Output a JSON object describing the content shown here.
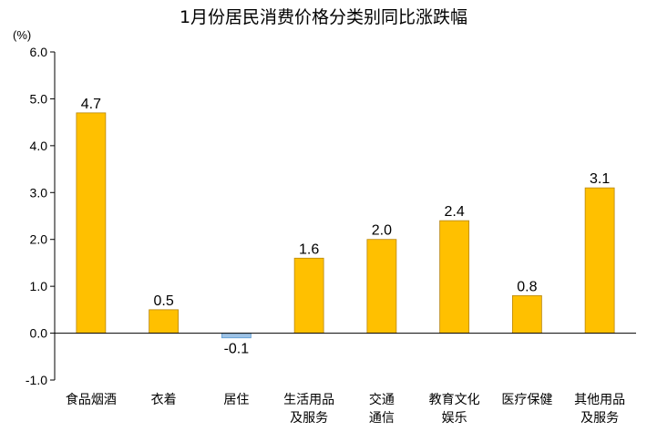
{
  "chart_data": {
    "type": "bar",
    "title": "1月份居民消费价格分类别同比涨跌幅",
    "unit_label": "(%)",
    "xlabel": "",
    "ylabel": "",
    "ylim": [
      -1.0,
      6.0
    ],
    "yticks": [
      "6.0",
      "5.0",
      "4.0",
      "3.0",
      "2.0",
      "1.0",
      "0.0",
      "-1.0"
    ],
    "ytick_values": [
      6,
      5,
      4,
      3,
      2,
      1,
      0,
      -1
    ],
    "grid": false,
    "legend": "none",
    "categories": [
      [
        "食品烟酒"
      ],
      [
        "衣着"
      ],
      [
        "居住"
      ],
      [
        "生活用品",
        "及服务"
      ],
      [
        "交通",
        "通信"
      ],
      [
        "教育文化",
        "娱乐"
      ],
      [
        "医疗保健"
      ],
      [
        "其他用品",
        "及服务"
      ]
    ],
    "values": [
      4.7,
      0.5,
      -0.1,
      1.6,
      2.0,
      2.4,
      0.8,
      3.1
    ],
    "data_labels": [
      "4.7",
      "0.5",
      "-0.1",
      "1.6",
      "2.0",
      "2.4",
      "0.8",
      "3.1"
    ],
    "colors": {
      "positive": "#FFC000",
      "negative": "#9DC3E6",
      "bar_edge": "#B8860B",
      "negative_edge": "#5B9BD5",
      "axis": "#000000"
    }
  }
}
